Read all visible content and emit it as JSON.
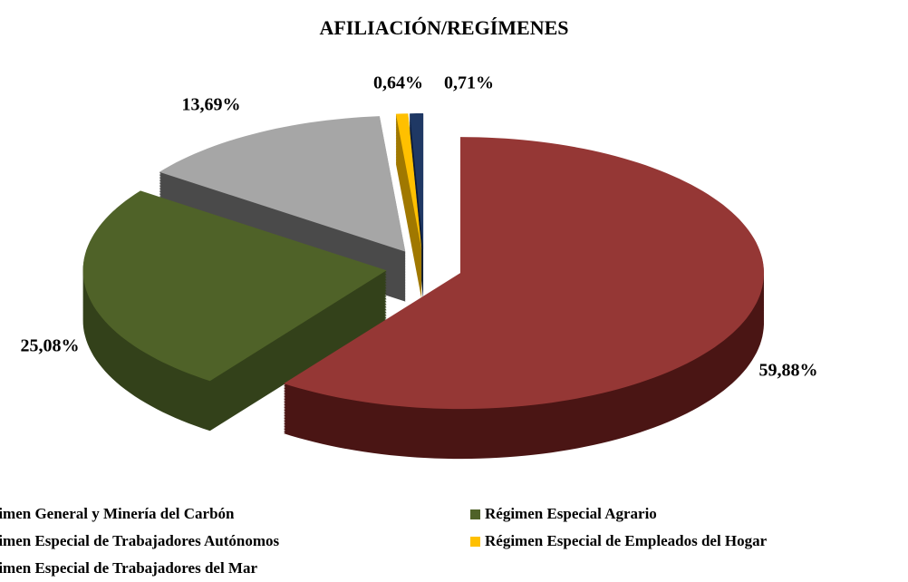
{
  "chart_data": {
    "type": "pie3d",
    "title": "AFILIACIÓN/REGÍMENES",
    "categories": [
      "Régimen General y Minería del Carbón",
      "Régimen Especial Agrario",
      "Régimen Especial de Trabajadores Autónomos",
      "Régimen Especial de Empleados del Hogar",
      "Régimen Especial de Trabajadores del Mar"
    ],
    "values": [
      59.88,
      25.08,
      13.69,
      0.64,
      0.71
    ],
    "value_labels": [
      "59,88%",
      "25,08%",
      "13,69%",
      "0,64%",
      "0,71%"
    ],
    "colors": [
      "#953735",
      "#4f6228",
      "#a6a6a6",
      "#ffc000",
      "#1f3864"
    ],
    "side_colors": [
      "#4a1514",
      "#33411a",
      "#4a4a4a",
      "#a07800",
      "#0c1a33"
    ],
    "legend": "bottom"
  }
}
